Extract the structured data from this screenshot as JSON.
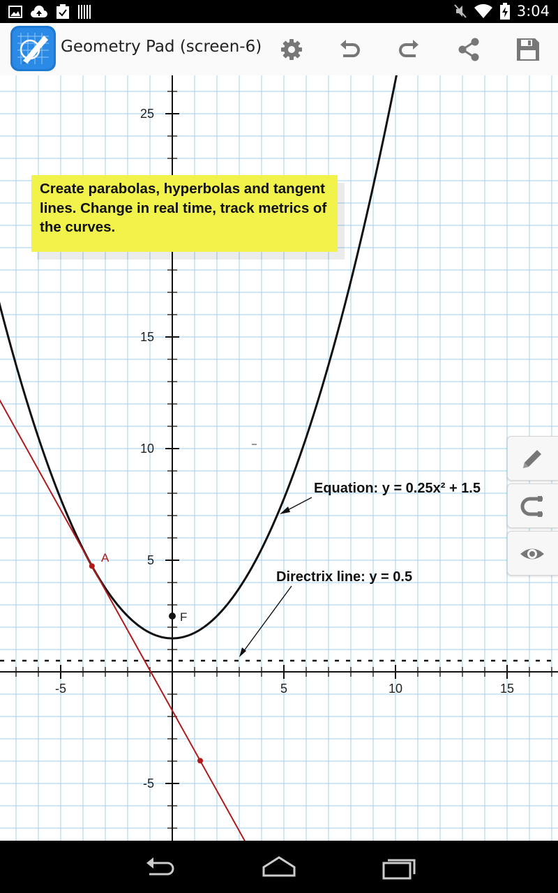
{
  "status_bar": {
    "time": "3:04",
    "left_icons": [
      "image-icon",
      "cloud-upload-icon",
      "clipboard-check-icon",
      "barcode-icon"
    ],
    "right_icons": [
      "mute-icon",
      "wifi-icon",
      "battery-charging-icon"
    ]
  },
  "app_bar": {
    "title": "Geometry Pad (screen-6)",
    "actions": [
      "settings-icon",
      "undo-icon",
      "redo-icon",
      "share-icon",
      "save-icon"
    ]
  },
  "canvas": {
    "background": "#ffffff",
    "grid_color": "#9fd0f0",
    "x_ticks": [
      "-5",
      "5",
      "10",
      "15"
    ],
    "y_ticks": [
      "25",
      "15",
      "10",
      "5",
      "-5"
    ],
    "note": "Create parabolas, hyperbolas and tangent lines. Change in real time, track metrics of the curves.",
    "note_color": "#f1f24a",
    "equation_label": "Equation: y = 0.25x² + 1.5",
    "directrix_label": "Directrix line: y = 0.5",
    "point_a_label": "A",
    "point_f_label": "F",
    "tangent_color": "#b01a1a",
    "parabola": {
      "a": 0.25,
      "c": 1.5
    },
    "directrix_y": 0.5,
    "focus": {
      "x": 0,
      "y": 2.5
    },
    "point_a": {
      "x": -3.6,
      "y": 4.74
    },
    "tangent_second_point": {
      "x": 1.25,
      "y": -3.98
    }
  },
  "tools": [
    "pencil-icon",
    "magnet-icon",
    "eye-icon"
  ],
  "nav_bar": [
    "back-icon",
    "home-icon",
    "recents-icon"
  ]
}
